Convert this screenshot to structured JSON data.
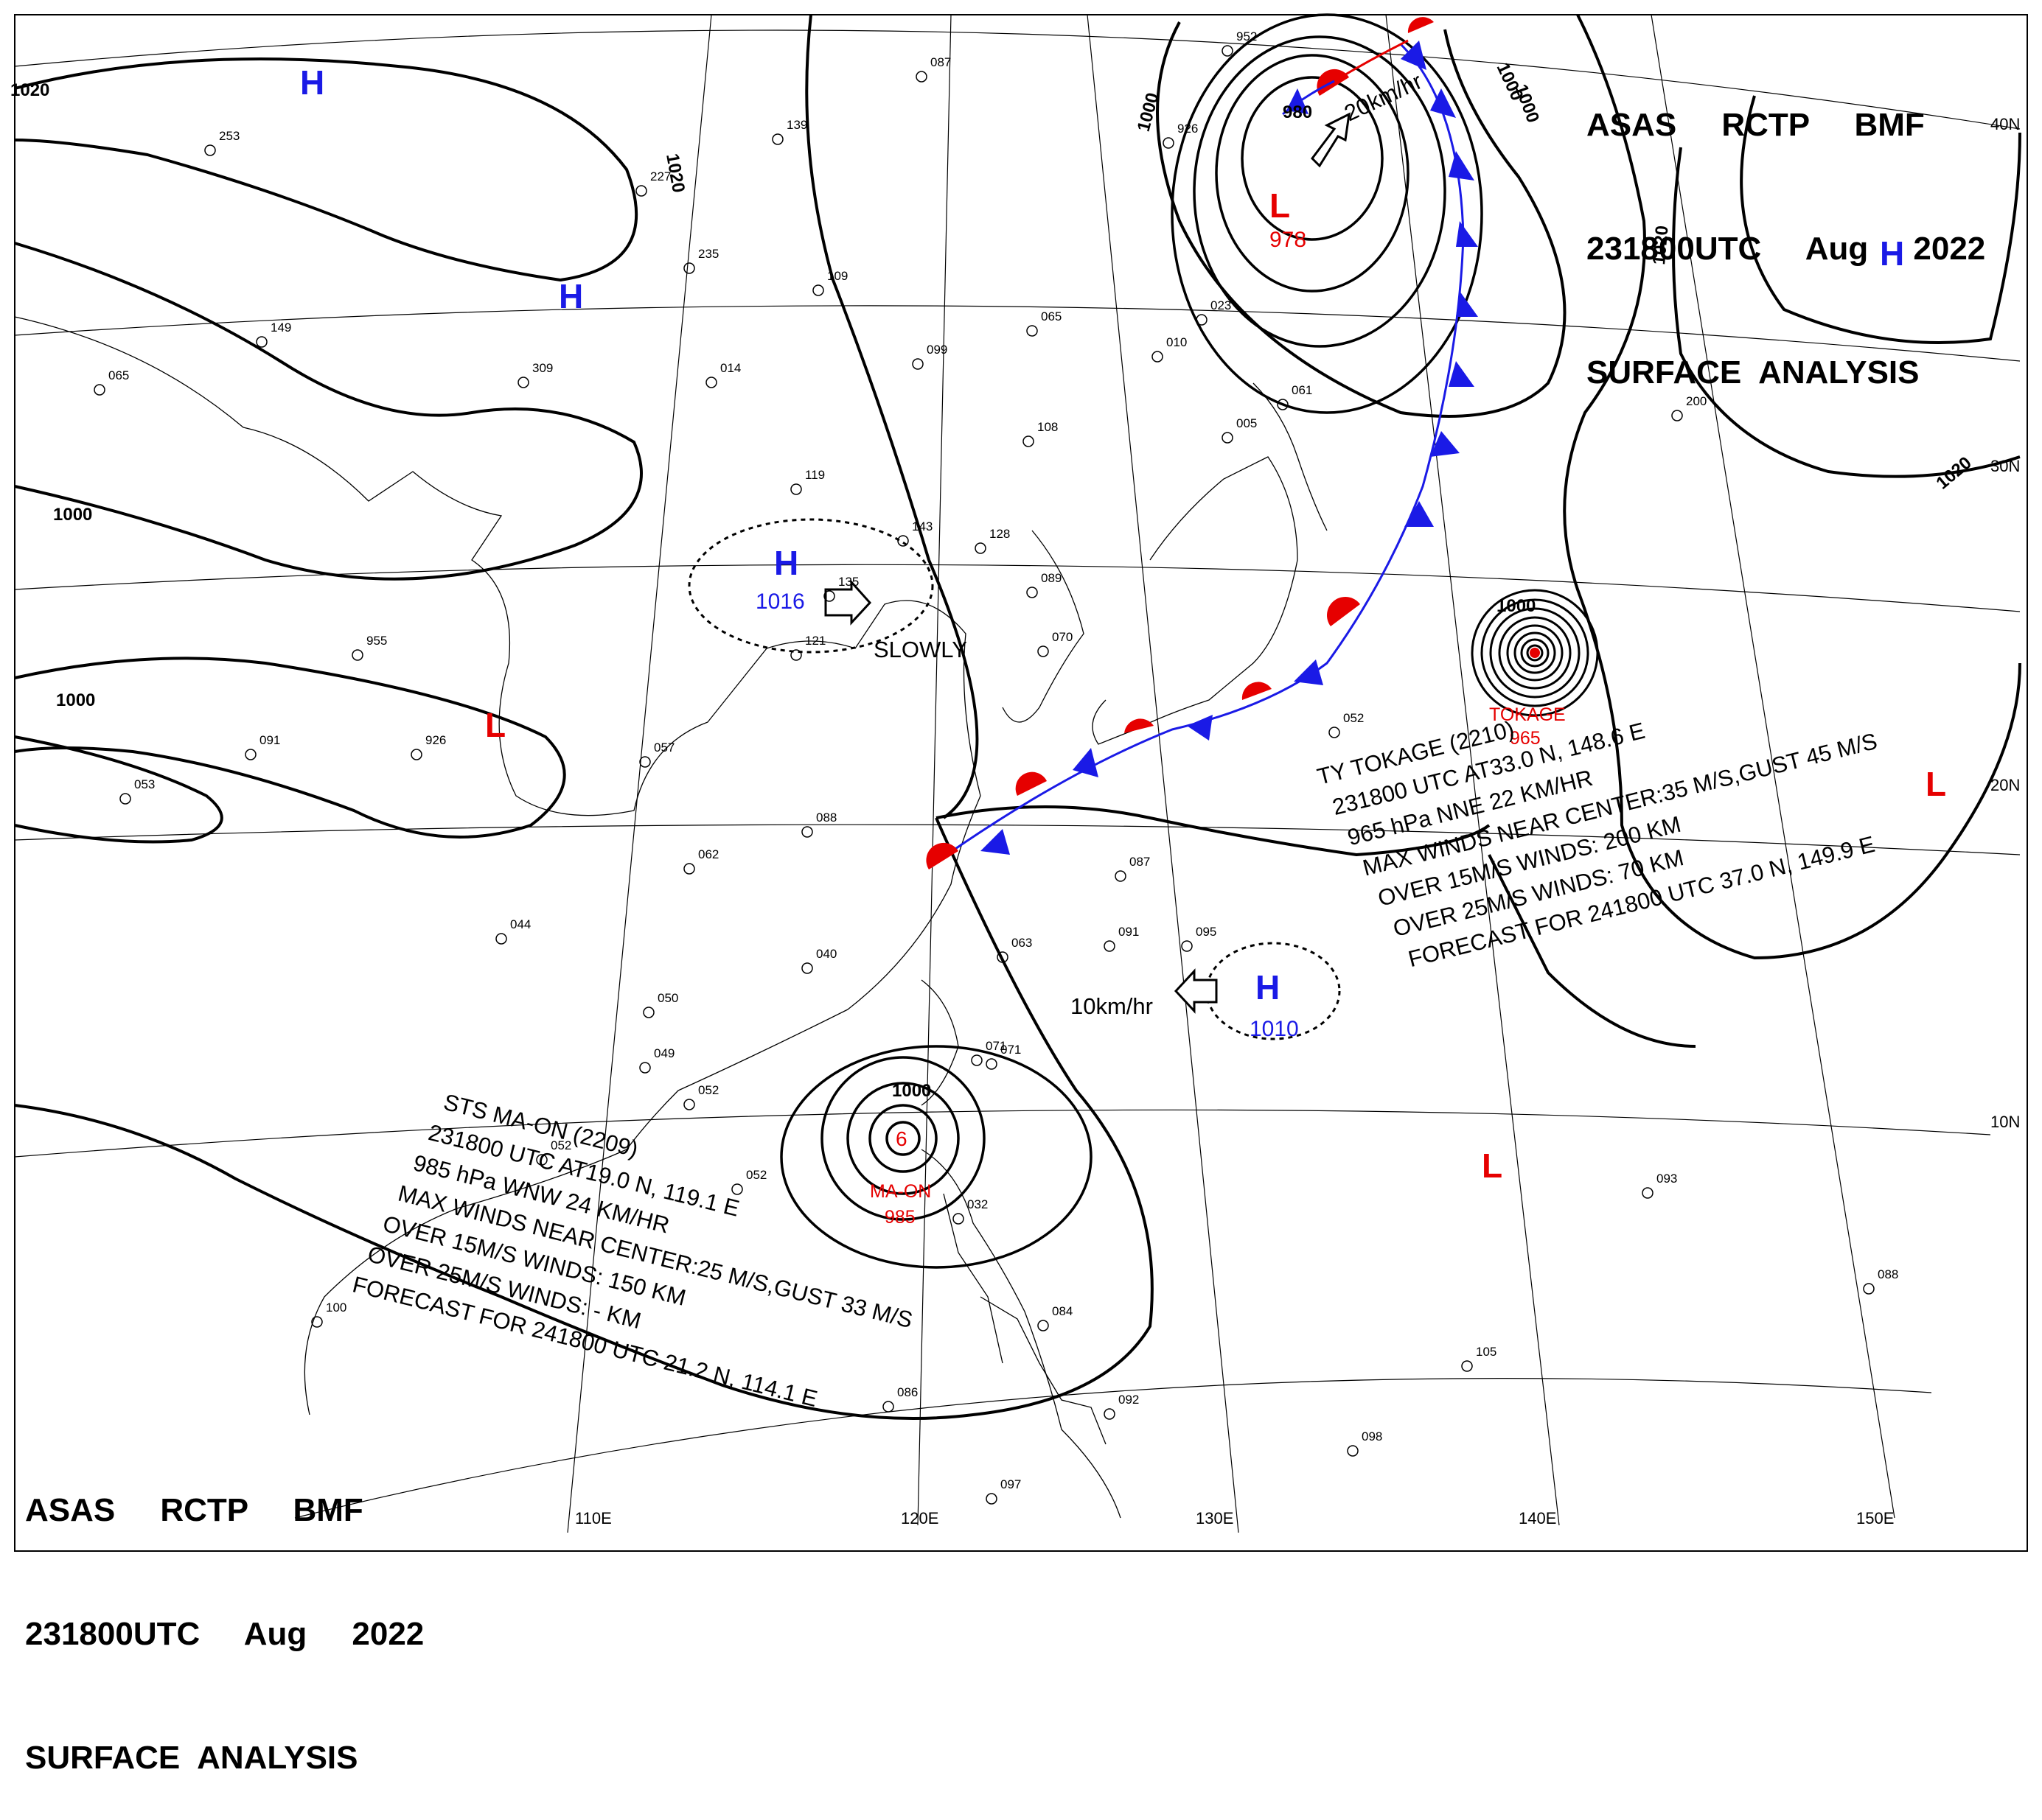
{
  "titles": {
    "top": {
      "line1": "ASAS     RCTP     BMF",
      "line2": "231800UTC     Aug     2022",
      "line3": "SURFACE  ANALYSIS"
    },
    "bottom": {
      "line1": "ASAS     RCTP     BMF",
      "line2": "231800UTC     Aug     2022",
      "line3": "SURFACE  ANALYSIS"
    }
  },
  "grid": {
    "lon_labels": [
      "110E",
      "120E",
      "130E",
      "140E",
      "150E"
    ],
    "lat_labels": [
      "40N",
      "30N",
      "20N",
      "10N"
    ]
  },
  "isobar_labels": [
    "1020",
    "1000",
    "1020",
    "1000",
    "1000",
    "1000",
    "1000",
    "1020",
    "1020",
    "980",
    "1000",
    "1000"
  ],
  "pressure_centers": [
    {
      "type": "H",
      "value": "",
      "color": "#1a1ae6"
    },
    {
      "type": "H",
      "value": "",
      "color": "#1a1ae6"
    },
    {
      "type": "H",
      "value": "1016",
      "color": "#1a1ae6"
    },
    {
      "type": "H",
      "value": "",
      "color": "#1a1ae6"
    },
    {
      "type": "H",
      "value": "1010",
      "color": "#1a1ae6"
    },
    {
      "type": "L",
      "value": "978",
      "color": "#e60000"
    },
    {
      "type": "L",
      "value": "",
      "color": "#e60000"
    },
    {
      "type": "L",
      "value": "",
      "color": "#e60000"
    },
    {
      "type": "L",
      "value": "",
      "color": "#e60000"
    }
  ],
  "movements": {
    "jp_low": "20km/hr",
    "china_high": "SLOWLY",
    "pacific_high": "10km/hr"
  },
  "storm_names": {
    "tokage": "TOKAGE",
    "tokage_pressure": "965",
    "maon": "MA-ON",
    "maon_pressure": "985"
  },
  "typhoon_tokage": {
    "line1": "TY  TOKAGE  (2210)",
    "line2": "231800 UTC  AT33.0 N, 148.6 E",
    "line3": "965 hPa  NNE  22 KM/HR",
    "line4": "MAX WINDS NEAR CENTER:35 M/S,GUST 45 M/S",
    "line5": "OVER 15M/S WINDS: 200 KM",
    "line6": "OVER 25M/S WINDS: 70 KM",
    "line7": "FORECAST FOR 241800 UTC 37.0 N, 149.9 E"
  },
  "storm_maon": {
    "line1": "STS  MA-ON  (2209)",
    "line2": "231800 UTC  AT19.0 N, 119.1 E",
    "line3": "985 hPa  WNW  24 KM/HR",
    "line4": "MAX WINDS NEAR CENTER:25 M/S,GUST 33 M/S",
    "line5": "OVER 15M/S WINDS: 150 KM",
    "line6": "OVER 25M/S WINDS: - KM",
    "line7": "FORECAST FOR 241800 UTC 21.2 N, 114.1 E"
  },
  "station_values": [
    "087",
    "253",
    "139",
    "227",
    "109",
    "235",
    "014",
    "149",
    "065",
    "309",
    "099",
    "065",
    "108",
    "119",
    "143",
    "128",
    "135",
    "089",
    "070",
    "955",
    "121",
    "926",
    "091",
    "057",
    "053",
    "088",
    "062",
    "044",
    "063",
    "040",
    "050",
    "049",
    "071",
    "052",
    "052",
    "084",
    "087",
    "091",
    "095",
    "032",
    "052",
    "100",
    "092",
    "086",
    "097",
    "098",
    "105",
    "088",
    "093",
    "071",
    "052",
    "005",
    "061",
    "023",
    "010",
    "952",
    "926",
    "200"
  ],
  "colors": {
    "high": "#1a1ae6",
    "low": "#e60000",
    "cold_front": "#1a1ae6",
    "warm_front": "#e60000",
    "line": "#000000"
  }
}
